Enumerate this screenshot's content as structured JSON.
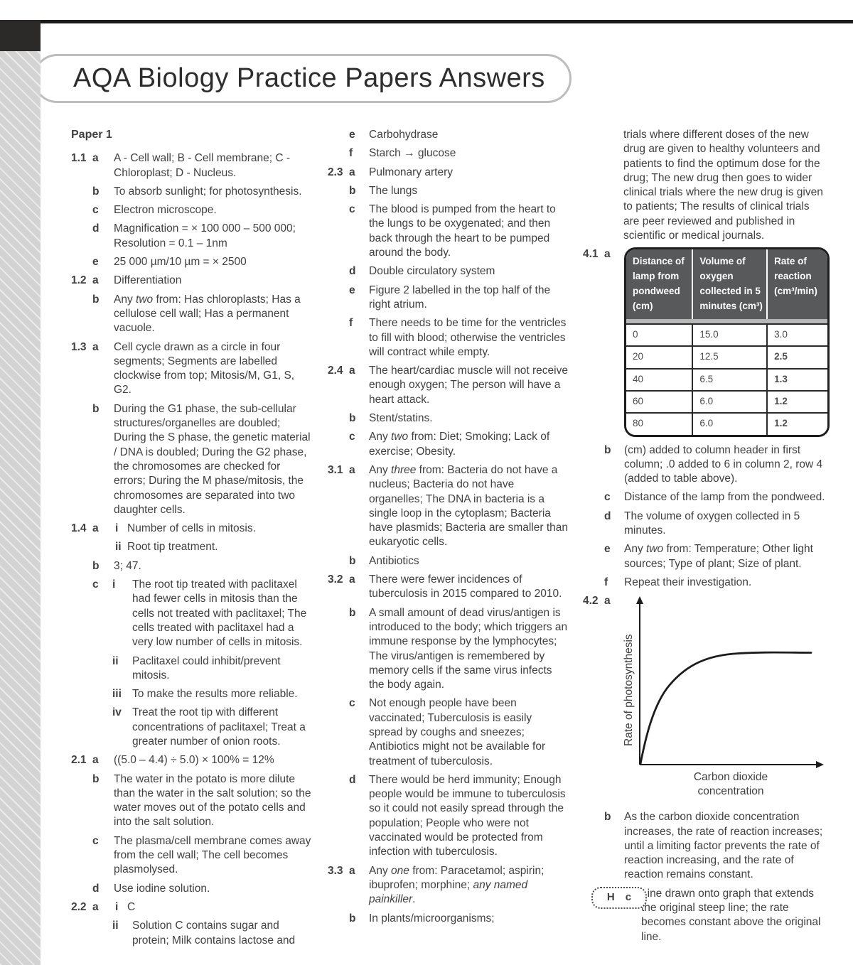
{
  "page": {
    "title": "AQA Biology Practice Papers Answers"
  },
  "columns": [
    {
      "items": [
        {
          "type": "heading",
          "text": "Paper 1"
        },
        {
          "num": "1.1",
          "letter": "a",
          "text": "A - Cell wall; B - Cell membrane; C - Chloroplast; D - Nucleus."
        },
        {
          "letter": "b",
          "text": "To absorb sunlight; for photosynthesis."
        },
        {
          "letter": "c",
          "text": "Electron microscope."
        },
        {
          "letter": "d",
          "text": "Magnification = × 100 000 – 500 000; Resolution = 0.1 – 1nm"
        },
        {
          "letter": "e",
          "text": "25 000 µm/10 µm = × 2500"
        },
        {
          "num": "1.2",
          "letter": "a",
          "text": "Differentiation"
        },
        {
          "letter": "b",
          "text": [
            {
              "t": "Any "
            },
            {
              "t": "two",
              "i": true
            },
            {
              "t": " from: Has chloroplasts; Has a cellulose cell wall; Has a permanent vacuole."
            }
          ]
        },
        {
          "num": "1.3",
          "letter": "a",
          "text": "Cell cycle drawn as a circle in four segments; Segments are labelled clockwise from top; Mitosis/M, G1, S, G2."
        },
        {
          "letter": "b",
          "text": "During the G1 phase, the sub-cellular structures/organelles are doubled; During the S phase, the genetic material / DNA is doubled; During the G2 phase, the chromosomes are checked for errors; During the M phase/mitosis, the chromosomes are separated into two daughter cells."
        },
        {
          "num": "1.4",
          "letter": "a",
          "roman": "i",
          "text": "Number of cells in mitosis."
        },
        {
          "roman": "ii",
          "text": "Root tip treatment."
        },
        {
          "letter": "b",
          "text": "3; 47."
        },
        {
          "letter": "c",
          "roman": "i",
          "wide": true,
          "text": "The root tip treated with paclitaxel had fewer cells in mitosis than the cells not treated with paclitaxel; The cells treated with paclitaxel had a very low number of cells in mitosis."
        },
        {
          "roman": "ii",
          "wide": true,
          "text": "Paclitaxel could inhibit/prevent mitosis."
        },
        {
          "roman": "iii",
          "wide": true,
          "text": "To make the results more reliable."
        },
        {
          "roman": "iv",
          "wide": true,
          "text": "Treat the root tip with different concentrations of paclitaxel; Treat a greater number of onion roots."
        },
        {
          "num": "2.1",
          "letter": "a",
          "text": "((5.0 – 4.4) ÷ 5.0) × 100% = 12%"
        },
        {
          "letter": "b",
          "text": "The water in the potato is more dilute than the water in the salt solution; so the water moves out of the potato cells and into the salt solution."
        },
        {
          "letter": "c",
          "text": "The plasma/cell membrane comes away from the cell wall; The cell becomes plasmolysed."
        },
        {
          "letter": "d",
          "text": "Use iodine solution."
        },
        {
          "num": "2.2",
          "letter": "a",
          "roman": "i",
          "text": "C"
        },
        {
          "roman": "ii",
          "wide": true,
          "text": "Solution C contains sugar and protein; Milk contains lactose and"
        }
      ]
    },
    {
      "items": [
        {
          "letter": "e",
          "text": "Carbohydrase"
        },
        {
          "letter": "f",
          "text": "Starch → glucose"
        },
        {
          "num": "2.3",
          "letter": "a",
          "text": "Pulmonary artery"
        },
        {
          "letter": "b",
          "text": "The lungs"
        },
        {
          "letter": "c",
          "text": "The blood is pumped from the heart to the lungs to be oxygenated; and then back through the heart to be pumped around the body."
        },
        {
          "letter": "d",
          "text": "Double circulatory system"
        },
        {
          "letter": "e",
          "text": "Figure 2 labelled in the top half of the right atrium."
        },
        {
          "letter": "f",
          "text": "There needs to be time for the ventricles to fill with blood; otherwise the ventricles will contract while empty."
        },
        {
          "num": "2.4",
          "letter": "a",
          "text": "The heart/cardiac muscle will not receive enough oxygen; The person will have a heart attack."
        },
        {
          "letter": "b",
          "text": "Stent/statins."
        },
        {
          "letter": "c",
          "text": [
            {
              "t": "Any "
            },
            {
              "t": "two",
              "i": true
            },
            {
              "t": " from: Diet; Smoking; Lack of exercise; Obesity."
            }
          ]
        },
        {
          "num": "3.1",
          "letter": "a",
          "text": [
            {
              "t": "Any "
            },
            {
              "t": "three",
              "i": true
            },
            {
              "t": " from: Bacteria do not have a nucleus; Bacteria do not have organelles; The DNA in bacteria is a single loop in the cytoplasm; Bacteria have plasmids; Bacteria are smaller than eukaryotic cells."
            }
          ]
        },
        {
          "letter": "b",
          "text": "Antibiotics"
        },
        {
          "num": "3.2",
          "letter": "a",
          "text": "There were fewer incidences of tuberculosis in 2015 compared to 2010."
        },
        {
          "letter": "b",
          "text": "A small amount of dead virus/antigen is introduced to the body; which triggers an immune response by the lymphocytes; The virus/antigen is remembered by memory cells if the same virus infects the body again."
        },
        {
          "letter": "c",
          "text": "Not enough people have been vaccinated; Tuberculosis is easily spread by coughs and sneezes; Antibiotics might not be available for treatment of tuberculosis."
        },
        {
          "letter": "d",
          "text": "There would be herd immunity; Enough people would be immune to tuberculosis so it could not easily spread through the population; People who were not vaccinated would be protected from infection with tuberculosis."
        },
        {
          "num": "3.3",
          "letter": "a",
          "text": [
            {
              "t": "Any "
            },
            {
              "t": "one",
              "i": true
            },
            {
              "t": " from: Paracetamol; aspirin; ibuprofen; morphine; "
            },
            {
              "t": "any named painkiller",
              "i": true
            },
            {
              "t": "."
            }
          ]
        },
        {
          "letter": "b",
          "text": "In plants/microorganisms;"
        }
      ]
    },
    {
      "items": [
        {
          "type": "para",
          "text": "trials where different doses of the new drug are given to healthy volunteers and patients to find the optimum dose for the drug; The new drug then goes to wider clinical trials where the new drug is given to patients; The results of clinical trials are peer reviewed and published in scientific or medical journals."
        },
        {
          "num": "4.1",
          "letter": "a",
          "table": {
            "headers": [
              "Distance of lamp from pondweed (cm)",
              "Volume of oxygen collected in 5 minutes (cm³)",
              "Rate of reaction (cm³/min)"
            ],
            "rows": [
              [
                "0",
                "15.0",
                "3.0"
              ],
              [
                "20",
                "12.5",
                "2.5"
              ],
              [
                "40",
                "6.5",
                "1.3"
              ],
              [
                "60",
                "6.0",
                "1.2"
              ],
              [
                "80",
                "6.0",
                "1.2"
              ]
            ],
            "bold_rate_rows": [
              false,
              true,
              true,
              true,
              true
            ],
            "header_bg": "#58595b",
            "header_text_color": "#ffffff"
          }
        },
        {
          "letter": "b",
          "text": "(cm) added to column header in first column; .0 added to 6 in column 2, row 4 (added to table above)."
        },
        {
          "letter": "c",
          "text": "Distance of the lamp from the pondweed."
        },
        {
          "letter": "d",
          "text": "The volume of oxygen collected in 5 minutes."
        },
        {
          "letter": "e",
          "text": [
            {
              "t": "Any "
            },
            {
              "t": "two",
              "i": true
            },
            {
              "t": " from: Temperature; Other light sources; Type of plant; Size of plant."
            }
          ]
        },
        {
          "letter": "f",
          "text": "Repeat their investigation."
        },
        {
          "num": "4.2",
          "letter": "a",
          "graph": {
            "type": "line",
            "ylabel": "Rate of photosynthesis",
            "xlabel": "Carbon dioxide concentration",
            "curve_shape": "steep rise from origin then plateau (saturating curve)",
            "tick_labels": "none"
          }
        },
        {
          "letter": "b",
          "text": "As the carbon dioxide concentration increases, the rate of reaction increases; until a limiting factor prevents the rate of reaction increasing, and the rate of reaction remains constant."
        },
        {
          "type": "hc",
          "badge_h": "H",
          "badge_c": "c",
          "text": "Line drawn onto graph that extends the original steep line; the rate becomes constant above the original line."
        }
      ]
    }
  ]
}
